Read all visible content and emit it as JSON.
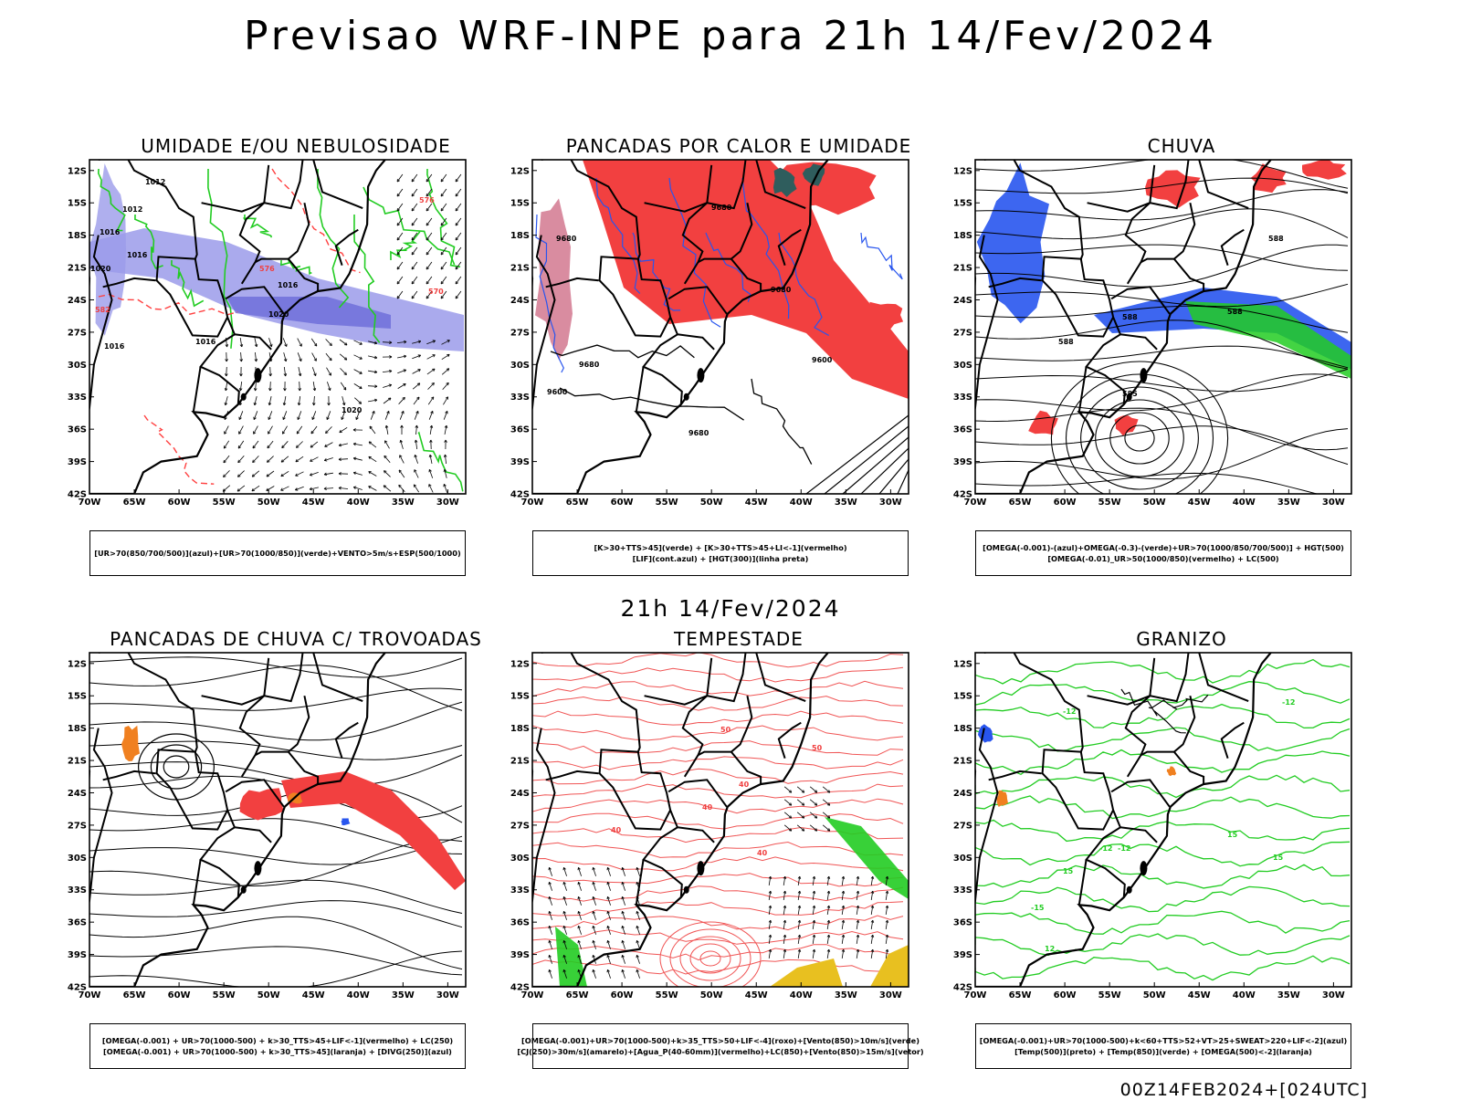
{
  "main_title": "Previsao WRF-INPE  para 21h 14/Fev/2024",
  "mid_title": "21h 14/Fev/2024",
  "footer": "00Z14FEB2024+[024UTC]",
  "axes": {
    "lat_ticks": [
      "12S",
      "15S",
      "18S",
      "21S",
      "24S",
      "27S",
      "30S",
      "33S",
      "36S",
      "39S",
      "42S"
    ],
    "lon_ticks": [
      "70W",
      "65W",
      "60W",
      "55W",
      "50W",
      "45W",
      "40W",
      "35W",
      "30W"
    ]
  },
  "colors": {
    "blue_fill": "#9b9bea",
    "green_line": "#22cc22",
    "red_fill": "#f24040",
    "blue_line": "#2855ee",
    "teal": "#2f5d5d",
    "orange": "#f08020",
    "yellow": "#e8c020"
  },
  "panels": [
    {
      "title": "UMIDADE E/OU NEBULOSIDADE",
      "legend": [
        "[UR>70(850/700/500)](azul)+[UR>70(1000/850)](verde)+VENTO>5m/s+ESP(500/1000)"
      ],
      "labels": [
        "1012",
        "1016",
        "1012",
        "1016",
        "1020",
        "1016",
        "1016",
        "1016",
        "1020",
        "1020",
        "576",
        "570",
        "582",
        "576"
      ]
    },
    {
      "title": "PANCADAS POR CALOR E UMIDADE",
      "legend": [
        "[K>30+TTS>45](verde) + [K>30+TTS>45+LI<-1](vermelho)",
        "[LIF](cont.azul) + [HGT(300)](linha preta)"
      ],
      "labels": [
        "9680",
        "9680",
        "9680",
        "9600",
        "9680",
        "9680",
        "9600"
      ]
    },
    {
      "title": "CHUVA",
      "legend": [
        "[OMEGA(-0.001)-(azul)+OMEGA(-0.3)-(verde)+UR>70(1000/850/700/500)] + HGT(500)",
        "[OMEGA(-0.01)_UR>50(1000/850)(vermelho) + LC(500)"
      ],
      "labels": [
        "588",
        "588",
        "588",
        "588",
        "585"
      ]
    },
    {
      "title": "PANCADAS DE CHUVA C/ TROVOADAS",
      "legend": [
        "[OMEGA(-0.001) + UR>70(1000-500) + k>30_TTS>45+LIF<-1](vermelho) + LC(250)",
        "[OMEGA(-0.001) + UR>70(1000-500) + k>30_TTS>45](laranja) + [DIVG(250)](azul)"
      ],
      "labels": []
    },
    {
      "title": "TEMPESTADE",
      "legend": [
        "[OMEGA(-0.001)+UR>70(1000-500)+k>35_TTS>50+LIF<-4](roxo)+[Vento(850)>10m/s](verde)",
        "[CJ(250)>30m/s](amarelo)+[Agua_P(40-60mm)](vermelho)+LC(850)+[Vento(850)>15m/s](vetor)"
      ],
      "labels": [
        "50",
        "40",
        "40",
        "40",
        "40",
        "50"
      ]
    },
    {
      "title": "GRANIZO",
      "legend": [
        "[OMEGA(-0.001)+UR>70(1000-500)+k<60+TTS>52+VT>25+SWEAT>220+LIF<-2](azul)",
        "[Temp(500)](preto) + [Temp(850)](verde) + [OMEGA(500)<-2](laranja)"
      ],
      "labels": [
        "-12",
        "-12",
        "-15",
        "-12",
        "15",
        "15",
        "-12",
        "12",
        "15"
      ]
    }
  ]
}
